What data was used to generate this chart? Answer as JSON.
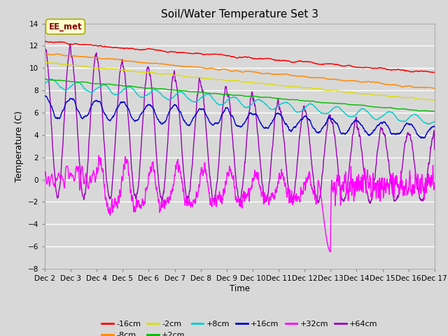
{
  "title": "Soil/Water Temperature Set 3",
  "ylabel": "Temperature (C)",
  "xlabel": "Time",
  "annotation": "EE_met",
  "xlim": [
    2,
    17
  ],
  "ylim": [
    -8,
    14
  ],
  "yticks": [
    -8,
    -6,
    -4,
    -2,
    0,
    2,
    4,
    6,
    8,
    10,
    12,
    14
  ],
  "xtick_labels": [
    "Dec 2",
    "Dec 3",
    "Dec 4",
    "Dec 5",
    "Dec 6",
    "Dec 7",
    "Dec 8",
    "Dec 9",
    "Dec 10",
    "Dec 11",
    "Dec 12",
    "Dec 13",
    "Dec 14",
    "Dec 15",
    "Dec 16",
    "Dec 17"
  ],
  "series_colors": {
    "-16cm": "#ff0000",
    "-8cm": "#ff8800",
    "-2cm": "#dddd00",
    "+2cm": "#00bb00",
    "+8cm": "#00cccc",
    "+16cm": "#0000cc",
    "+32cm": "#ff00ff",
    "+64cm": "#9900bb"
  },
  "fig_bg": "#d8d8d8",
  "plot_bg": "#d8d8d8",
  "grid_color": "#ffffff"
}
